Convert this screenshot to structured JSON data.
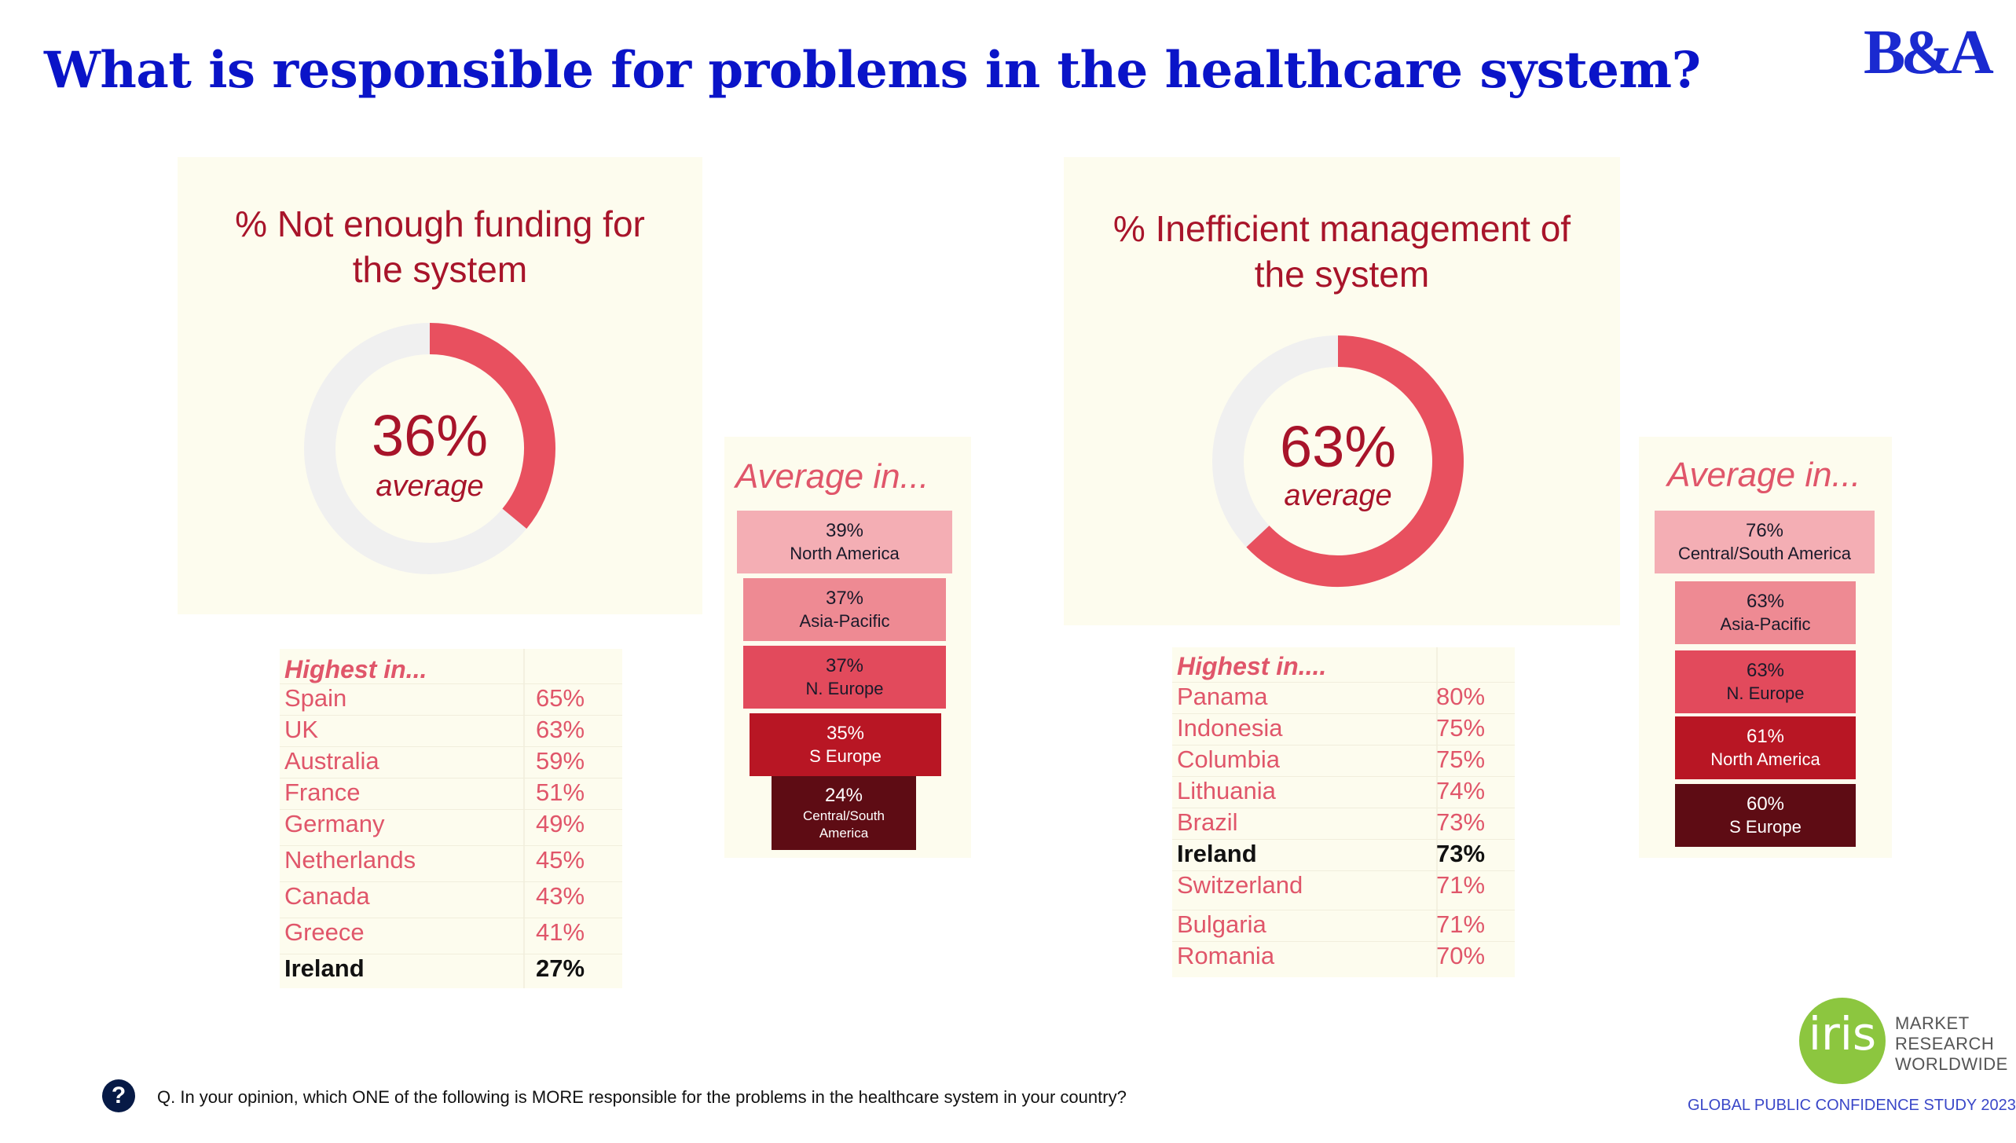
{
  "title": "What is responsible for problems in the healthcare system?",
  "brand": "B&A",
  "colors": {
    "title": "#0a14c8",
    "accent": "#e0566a",
    "dark_red": "#a8142a",
    "panel": "#fdfcee"
  },
  "chart_data": [
    {
      "type": "pie",
      "title": "% Not enough funding for the system",
      "title_lines": [
        "% Not enough funding for",
        "the system"
      ],
      "value_label": "36%",
      "sub_label": "average",
      "slices": [
        {
          "label": "Not enough funding",
          "value": 36
        },
        {
          "label": "",
          "value": 64
        }
      ],
      "colors": [
        "#e8505f",
        "#f0f0f0"
      ]
    },
    {
      "type": "bar",
      "title": "Average in...",
      "categories": [
        "North America",
        "Asia-Pacific",
        "N. Europe",
        "S Europe",
        "Central/South America"
      ],
      "values": [
        39,
        37,
        37,
        35,
        24
      ],
      "value_labels": [
        "39%",
        "37%",
        "37%",
        "35%",
        "24%"
      ],
      "name_lines": [
        [
          "North America"
        ],
        [
          "Asia-Pacific"
        ],
        [
          "N. Europe"
        ],
        [
          "S Europe"
        ],
        [
          "Central/South",
          "America"
        ]
      ],
      "colors": [
        "#f4aeb4",
        "#ee8a93",
        "#e24a5c",
        "#b81624",
        "#5e0c14"
      ]
    },
    {
      "type": "table",
      "title": "Highest in...",
      "rows": [
        [
          "Spain",
          "65%"
        ],
        [
          "UK",
          "63%"
        ],
        [
          "Australia",
          "59%"
        ],
        [
          "France",
          "51%"
        ],
        [
          "Germany",
          "49%"
        ],
        [
          "Netherlands",
          "45%"
        ],
        [
          "Canada",
          "43%"
        ],
        [
          "Greece",
          "41%"
        ],
        [
          "Ireland",
          "27%"
        ]
      ],
      "highlight": "Ireland"
    },
    {
      "type": "pie",
      "title": "% Inefficient management of the system",
      "title_lines": [
        "% Inefficient management of",
        "the system"
      ],
      "value_label": "63%",
      "sub_label": "average",
      "slices": [
        {
          "label": "Inefficient management",
          "value": 63
        },
        {
          "label": "",
          "value": 37
        }
      ],
      "colors": [
        "#e8505f",
        "#f0f0f0"
      ]
    },
    {
      "type": "bar",
      "title": "Average in...",
      "categories": [
        "Central/South America",
        "Asia-Pacific",
        "N. Europe",
        "North America",
        "S Europe"
      ],
      "values": [
        76,
        63,
        63,
        61,
        60
      ],
      "value_labels": [
        "76%",
        "63%",
        "63%",
        "61%",
        "60%"
      ],
      "name_lines": [
        [
          "Central/South America"
        ],
        [
          "Asia-Pacific"
        ],
        [
          "N. Europe"
        ],
        [
          "North America"
        ],
        [
          "S Europe"
        ]
      ],
      "colors": [
        "#f4aeb4",
        "#ee8a93",
        "#e24a5c",
        "#b81624",
        "#5e0c14"
      ]
    },
    {
      "type": "table",
      "title": "Highest in....",
      "rows": [
        [
          "Panama",
          "80%"
        ],
        [
          "Indonesia",
          "75%"
        ],
        [
          "Columbia",
          "75%"
        ],
        [
          "Lithuania",
          "74%"
        ],
        [
          "Brazil",
          "73%"
        ],
        [
          "Ireland",
          "73%"
        ],
        [
          "Switzerland",
          "71%"
        ],
        [
          "Bulgaria",
          "71%"
        ],
        [
          "Romania",
          "70%"
        ]
      ],
      "highlight": "Ireland"
    }
  ],
  "question": "Q. In your opinion, which ONE of the following is MORE responsible for the problems in the healthcare system in your country?",
  "question_icon": "?",
  "partner": {
    "name": "iris",
    "lines": [
      "MARKET",
      "RESEARCH",
      "WORLDWIDE"
    ]
  },
  "footer": "GLOBAL PUBLIC CONFIDENCE STUDY 2023"
}
